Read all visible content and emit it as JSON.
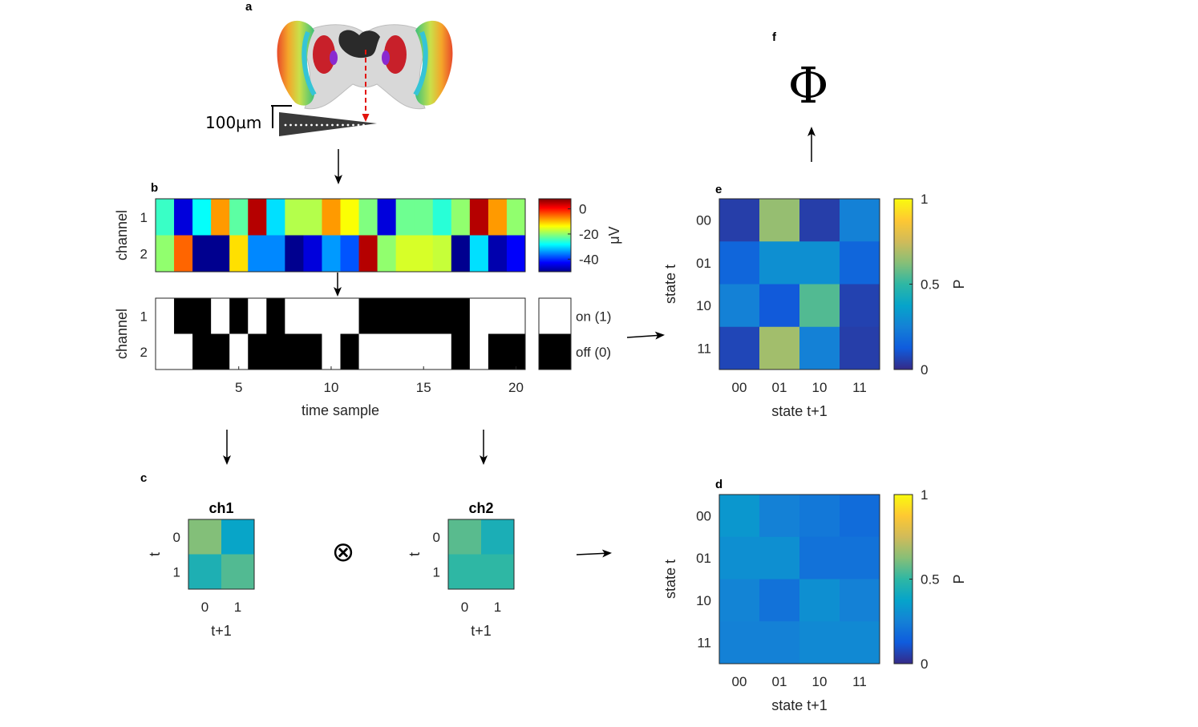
{
  "panels": {
    "a": {
      "label": "a",
      "scale_text": "100µm"
    },
    "b": {
      "label": "b"
    },
    "c": {
      "label": "c"
    },
    "d": {
      "label": "d"
    },
    "e": {
      "label": "e"
    },
    "f": {
      "label": "f",
      "symbol": "Φ"
    }
  },
  "chart_data": [
    {
      "id": "b_voltage",
      "type": "heatmap",
      "ylabel": "channel",
      "rows": [
        "1",
        "2"
      ],
      "x": [
        1,
        2,
        3,
        4,
        5,
        6,
        7,
        8,
        9,
        10,
        11,
        12,
        13,
        14,
        15,
        16,
        17,
        18,
        19,
        20
      ],
      "values": [
        [
          -25,
          -45,
          -28,
          -8,
          -23,
          5,
          -30,
          -18,
          -18,
          -8,
          -14,
          -21,
          -45,
          -22,
          -22,
          -26,
          -20,
          5,
          -8,
          -20
        ],
        [
          -20,
          -5,
          -50,
          -50,
          -12,
          -35,
          -35,
          -52,
          -45,
          -34,
          -38,
          5,
          -20,
          -16,
          -16,
          -17,
          -50,
          -30,
          -48,
          -43
        ]
      ],
      "colorbar": {
        "ticks": [
          "0",
          "-20",
          "-40"
        ],
        "tick_values": [
          0,
          -20,
          -40
        ],
        "range": [
          -50,
          8
        ],
        "label": "μV",
        "colormap": "jet"
      }
    },
    {
      "id": "b_binary",
      "type": "heatmap",
      "ylabel": "channel",
      "xlabel": "time sample",
      "rows": [
        "1",
        "2"
      ],
      "x": [
        1,
        2,
        3,
        4,
        5,
        6,
        7,
        8,
        9,
        10,
        11,
        12,
        13,
        14,
        15,
        16,
        17,
        18,
        19,
        20
      ],
      "xticks": [
        "5",
        "10",
        "15",
        "20"
      ],
      "xtick_values": [
        5,
        10,
        15,
        20
      ],
      "values": [
        [
          1,
          0,
          0,
          1,
          0,
          1,
          0,
          1,
          1,
          1,
          1,
          0,
          0,
          0,
          0,
          0,
          0,
          1,
          1,
          1
        ],
        [
          1,
          1,
          0,
          0,
          1,
          0,
          0,
          0,
          0,
          1,
          0,
          1,
          1,
          1,
          1,
          1,
          0,
          1,
          0,
          0
        ]
      ],
      "legend": [
        {
          "label": "on (1)",
          "color": "#ffffff"
        },
        {
          "label": "off (0)",
          "color": "#000000"
        }
      ]
    },
    {
      "id": "c_ch1",
      "type": "heatmap",
      "title": "ch1",
      "ylabel": "t",
      "xlabel": "t+1",
      "rows": [
        "0",
        "1"
      ],
      "columns": [
        "0",
        "1"
      ],
      "values": [
        [
          0.62,
          0.38
        ],
        [
          0.45,
          0.55
        ]
      ]
    },
    {
      "id": "c_ch2",
      "type": "heatmap",
      "title": "ch2",
      "ylabel": "t",
      "xlabel": "t+1",
      "rows": [
        "0",
        "1"
      ],
      "columns": [
        "0",
        "1"
      ],
      "values": [
        [
          0.56,
          0.44
        ],
        [
          0.5,
          0.5
        ]
      ]
    },
    {
      "id": "e_tpm",
      "type": "heatmap",
      "ylabel": "state t",
      "xlabel": "state t+1",
      "rows": [
        "00",
        "01",
        "10",
        "11"
      ],
      "columns": [
        "00",
        "01",
        "10",
        "11"
      ],
      "values": [
        [
          0.05,
          0.65,
          0.05,
          0.25
        ],
        [
          0.16,
          0.3,
          0.3,
          0.16
        ],
        [
          0.25,
          0.12,
          0.55,
          0.06
        ],
        [
          0.07,
          0.67,
          0.25,
          0.05
        ]
      ],
      "colorbar": {
        "ticks": [
          "0",
          "0.5",
          "1"
        ],
        "tick_values": [
          0,
          0.5,
          1
        ],
        "range": [
          0,
          1
        ],
        "label": "P",
        "colormap": "parula"
      }
    },
    {
      "id": "d_tpm",
      "type": "heatmap",
      "ylabel": "state t",
      "xlabel": "state t+1",
      "rows": [
        "00",
        "01",
        "10",
        "11"
      ],
      "columns": [
        "00",
        "01",
        "10",
        "11"
      ],
      "values": [
        [
          0.33,
          0.25,
          0.22,
          0.18
        ],
        [
          0.3,
          0.3,
          0.2,
          0.2
        ],
        [
          0.26,
          0.2,
          0.3,
          0.25
        ],
        [
          0.25,
          0.25,
          0.28,
          0.28
        ]
      ],
      "colorbar": {
        "ticks": [
          "0",
          "0.5",
          "1"
        ],
        "tick_values": [
          0,
          0.5,
          1
        ],
        "range": [
          0,
          1
        ],
        "label": "P",
        "colormap": "parula"
      }
    }
  ],
  "operator": "⊗"
}
